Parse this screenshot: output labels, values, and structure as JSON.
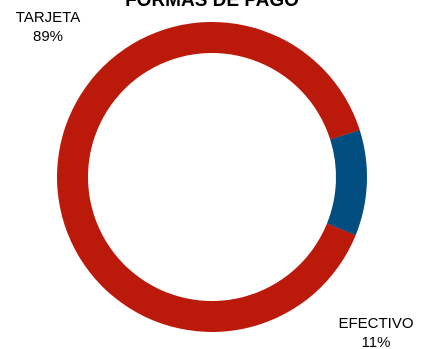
{
  "chart_data": {
    "type": "pie",
    "donut": true,
    "title": "FORMAS DE PAGO",
    "slices": [
      {
        "label": "TARJETA",
        "value": 89,
        "percent_label": "89%",
        "color": "#BB1A0B"
      },
      {
        "label": "EFECTIVO",
        "value": 11,
        "percent_label": "11%",
        "color": "#024E80"
      }
    ],
    "legend": "none"
  }
}
